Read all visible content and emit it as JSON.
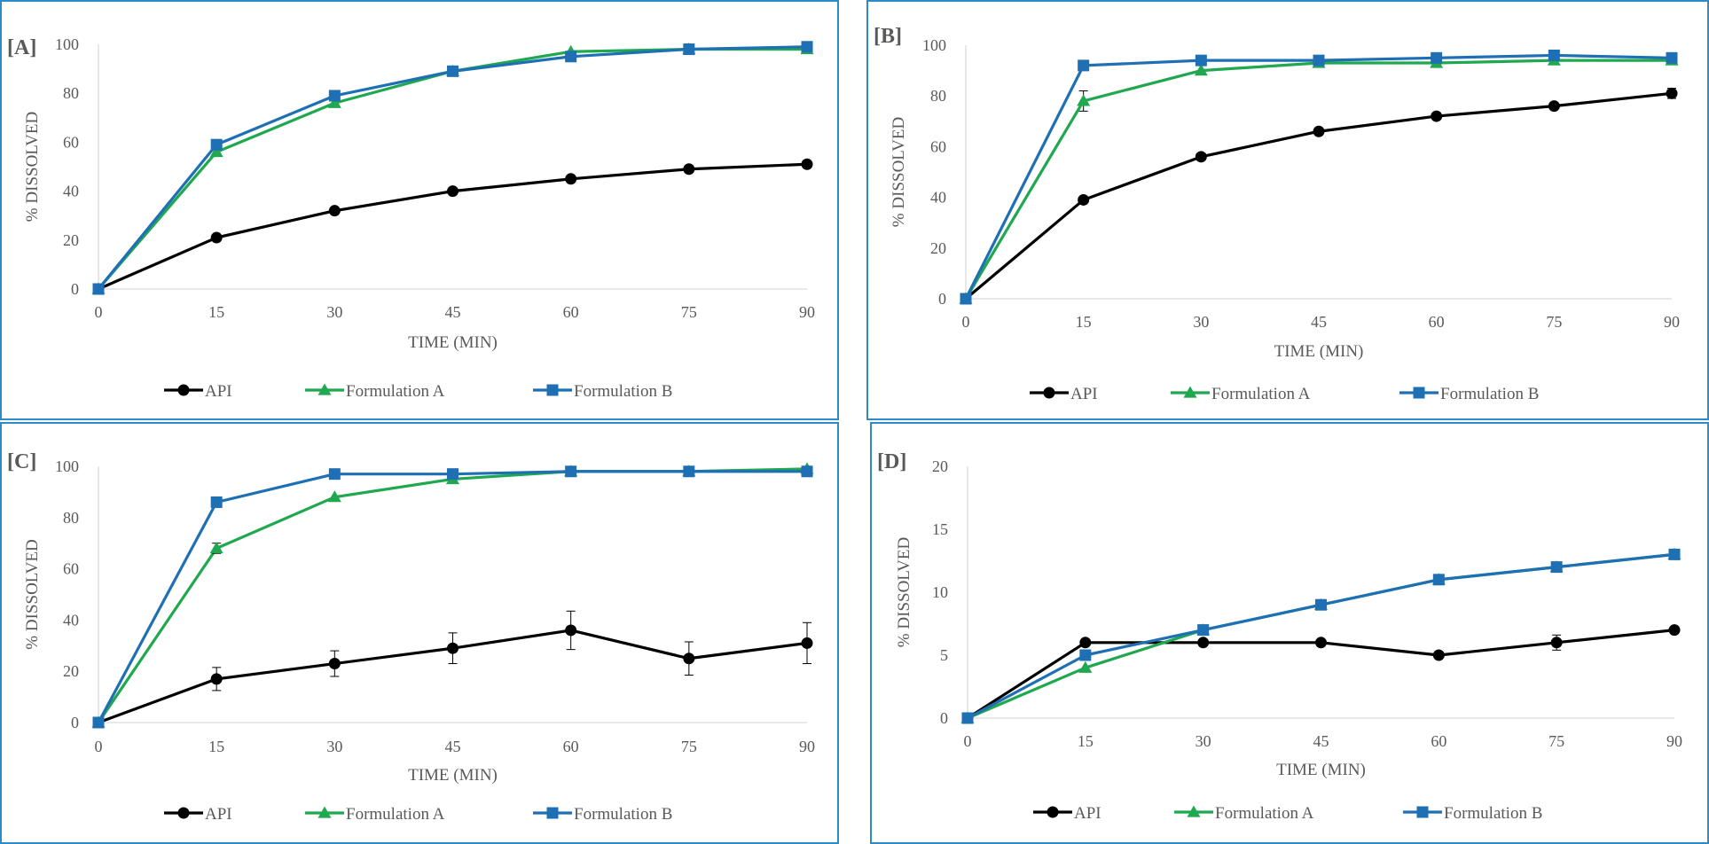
{
  "chart_data": [
    {
      "type": "line",
      "panel_label": "[A]",
      "xlabel": "TIME (MIN)",
      "ylabel": "% DISSOLVED",
      "x": [
        0,
        15,
        30,
        45,
        60,
        75,
        90
      ],
      "ylim": [
        0,
        100
      ],
      "yticks": [
        0,
        20,
        40,
        60,
        80,
        100
      ],
      "legend_position": "bottom",
      "grid": false,
      "series": [
        {
          "name": "API",
          "color": "#000000",
          "marker": "circle",
          "values": [
            0,
            21,
            32,
            40,
            45,
            49,
            51
          ],
          "errors": [
            0,
            0,
            0,
            0,
            0,
            0,
            0
          ]
        },
        {
          "name": "Formulation A",
          "color": "#1fa84f",
          "marker": "triangle",
          "values": [
            0,
            56,
            76,
            89,
            97,
            98,
            98
          ],
          "errors": [
            0,
            0,
            0,
            0,
            0,
            0,
            0
          ]
        },
        {
          "name": "Formulation B",
          "color": "#1f6fb4",
          "marker": "square",
          "values": [
            0,
            59,
            79,
            89,
            95,
            98,
            99
          ],
          "errors": [
            0,
            0,
            0,
            0,
            0,
            0,
            0
          ]
        }
      ]
    },
    {
      "type": "line",
      "panel_label": "[B]",
      "xlabel": "TIME (MIN)",
      "ylabel": "% DISSOLVED",
      "x": [
        0,
        15,
        30,
        45,
        60,
        75,
        90
      ],
      "ylim": [
        0,
        100
      ],
      "yticks": [
        0,
        20,
        40,
        60,
        80,
        100
      ],
      "legend_position": "bottom",
      "grid": false,
      "series": [
        {
          "name": "API",
          "color": "#000000",
          "marker": "circle",
          "values": [
            0,
            39,
            56,
            66,
            72,
            76,
            81
          ],
          "errors": [
            0,
            0,
            0,
            0,
            0,
            0,
            2
          ]
        },
        {
          "name": "Formulation A",
          "color": "#1fa84f",
          "marker": "triangle",
          "values": [
            0,
            78,
            90,
            93,
            93,
            94,
            94
          ],
          "errors": [
            0,
            4,
            0,
            0,
            0,
            0,
            0
          ]
        },
        {
          "name": "Formulation B",
          "color": "#1f6fb4",
          "marker": "square",
          "values": [
            0,
            92,
            94,
            94,
            95,
            96,
            95
          ],
          "errors": [
            0,
            0,
            0,
            0,
            0,
            0,
            0
          ]
        }
      ]
    },
    {
      "type": "line",
      "panel_label": "[C]",
      "xlabel": "TIME (MIN)",
      "ylabel": "% DISSOLVED",
      "x": [
        0,
        15,
        30,
        45,
        60,
        75,
        90
      ],
      "ylim": [
        0,
        100
      ],
      "yticks": [
        0,
        20,
        40,
        60,
        80,
        100
      ],
      "legend_position": "bottom",
      "grid": false,
      "series": [
        {
          "name": "API",
          "color": "#000000",
          "marker": "circle",
          "values": [
            0,
            17,
            23,
            29,
            36,
            25,
            31
          ],
          "errors": [
            0,
            4.5,
            5,
            6,
            7.5,
            6.5,
            8
          ]
        },
        {
          "name": "Formulation A",
          "color": "#1fa84f",
          "marker": "triangle",
          "values": [
            0,
            68,
            88,
            95,
            98,
            98,
            99
          ],
          "errors": [
            0,
            2,
            0,
            0,
            0,
            0,
            0
          ]
        },
        {
          "name": "Formulation B",
          "color": "#1f6fb4",
          "marker": "square",
          "values": [
            0,
            86,
            97,
            97,
            98,
            98,
            98
          ],
          "errors": [
            0,
            0,
            0,
            0,
            0,
            0,
            0
          ]
        }
      ]
    },
    {
      "type": "line",
      "panel_label": "[D]",
      "xlabel": "TIME (MIN)",
      "ylabel": "% DISSOLVED",
      "x": [
        0,
        15,
        30,
        45,
        60,
        75,
        90
      ],
      "ylim": [
        0,
        20
      ],
      "yticks": [
        0,
        5,
        10,
        15,
        20
      ],
      "legend_position": "bottom",
      "grid": false,
      "series": [
        {
          "name": "API",
          "color": "#000000",
          "marker": "circle",
          "values": [
            0,
            6,
            6,
            6,
            5,
            6,
            7
          ],
          "errors": [
            0,
            0,
            0,
            0,
            0,
            0.6,
            0
          ]
        },
        {
          "name": "Formulation A",
          "color": "#1fa84f",
          "marker": "triangle",
          "values": [
            0,
            4,
            7,
            9,
            11,
            12,
            13
          ],
          "errors": [
            0,
            0,
            0,
            0,
            0,
            0,
            0
          ]
        },
        {
          "name": "Formulation B",
          "color": "#1f6fb4",
          "marker": "square",
          "values": [
            0,
            5,
            7,
            9,
            11,
            12,
            13
          ],
          "errors": [
            0,
            0,
            0,
            0,
            0,
            0,
            0
          ]
        }
      ]
    }
  ],
  "colors": {
    "panel_border": "#2e8bc9",
    "axis": "#d9d9d9",
    "text": "#595959"
  }
}
